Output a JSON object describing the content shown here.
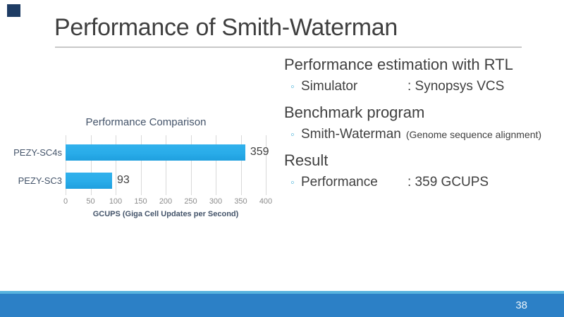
{
  "slide": {
    "title": "Performance of Smith-Waterman",
    "page_number": "38",
    "accent_color": "#1e3c64",
    "footer_band_color": "#2c80c6",
    "footer_strip_color": "#58b3de"
  },
  "right_panel": {
    "bullet_char": "◦",
    "sections": [
      {
        "heading": "Performance estimation with RTL",
        "bullets": [
          {
            "label": "Simulator",
            "value": ": Synopsys VCS",
            "note": ""
          }
        ]
      },
      {
        "heading": "Benchmark program",
        "bullets": [
          {
            "label": "Smith-Waterman",
            "value": "",
            "note": "(Genome sequence alignment)"
          }
        ]
      },
      {
        "heading": "Result",
        "bullets": [
          {
            "label": "Performance",
            "value": ": 359 GCUPS",
            "note": ""
          }
        ]
      }
    ]
  },
  "chart_data": {
    "type": "bar",
    "orientation": "horizontal",
    "title": "Performance Comparison",
    "categories": [
      "PEZY-SC4s",
      "PEZY-SC3"
    ],
    "values": [
      359,
      93
    ],
    "value_labels": [
      "359",
      "93"
    ],
    "xlabel": "GCUPS (Giga Cell Updates per Second)",
    "ylabel": "",
    "xlim": [
      0,
      400
    ],
    "xticks": [
      0,
      50,
      100,
      150,
      200,
      250,
      300,
      350,
      400
    ],
    "grid": true,
    "legend": false,
    "bar_color": "#29ace9",
    "title_color": "#44546a",
    "tick_color": "#8c8c8c"
  }
}
